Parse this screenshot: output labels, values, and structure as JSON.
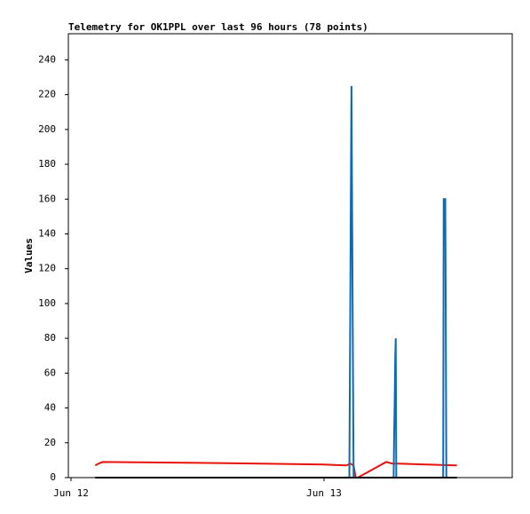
{
  "chart_data": {
    "type": "line",
    "title": "Telemetry for OK1PPL over last 96 hours (78 points)",
    "y_label": "Values",
    "xlim": [
      -0.25,
      41.85
    ],
    "xticks": [
      {
        "value": 0,
        "label": "Jun 12"
      },
      {
        "value": 24,
        "label": "Jun 13"
      }
    ],
    "ylim": [
      0,
      255
    ],
    "yticks": [
      0,
      20,
      40,
      60,
      80,
      100,
      120,
      140,
      160,
      180,
      200,
      220,
      240
    ],
    "grid": false,
    "series": [
      {
        "color": "#e8120c",
        "x": [
          2.3,
          2.6,
          3.0,
          12,
          18,
          24,
          26.1,
          26.5,
          26.8,
          27.0,
          27.2,
          29.9,
          30.5,
          31,
          36.6
        ],
        "values": [
          7,
          8,
          9,
          8.5,
          8,
          7.5,
          7,
          8,
          7,
          0,
          0,
          9,
          8,
          8,
          7
        ]
      },
      {
        "color": "#0f6ab4",
        "x": [
          2.3,
          26.4,
          26.5,
          26.6,
          26.7,
          26.8,
          30.6,
          30.65,
          30.7,
          30.75,
          30.8,
          30.85,
          35.3,
          35.35,
          35.5,
          35.55,
          35.6,
          36.6
        ],
        "values": [
          0,
          0,
          112,
          225,
          112,
          0,
          0,
          25,
          44,
          68,
          80,
          0,
          0,
          160,
          160,
          80,
          0,
          0
        ]
      },
      {
        "color": "#000000",
        "x": [
          2.3,
          36.6
        ],
        "values": [
          0,
          0
        ]
      }
    ]
  }
}
